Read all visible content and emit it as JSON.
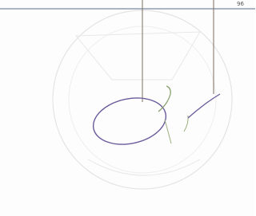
{
  "label": "96"
}
